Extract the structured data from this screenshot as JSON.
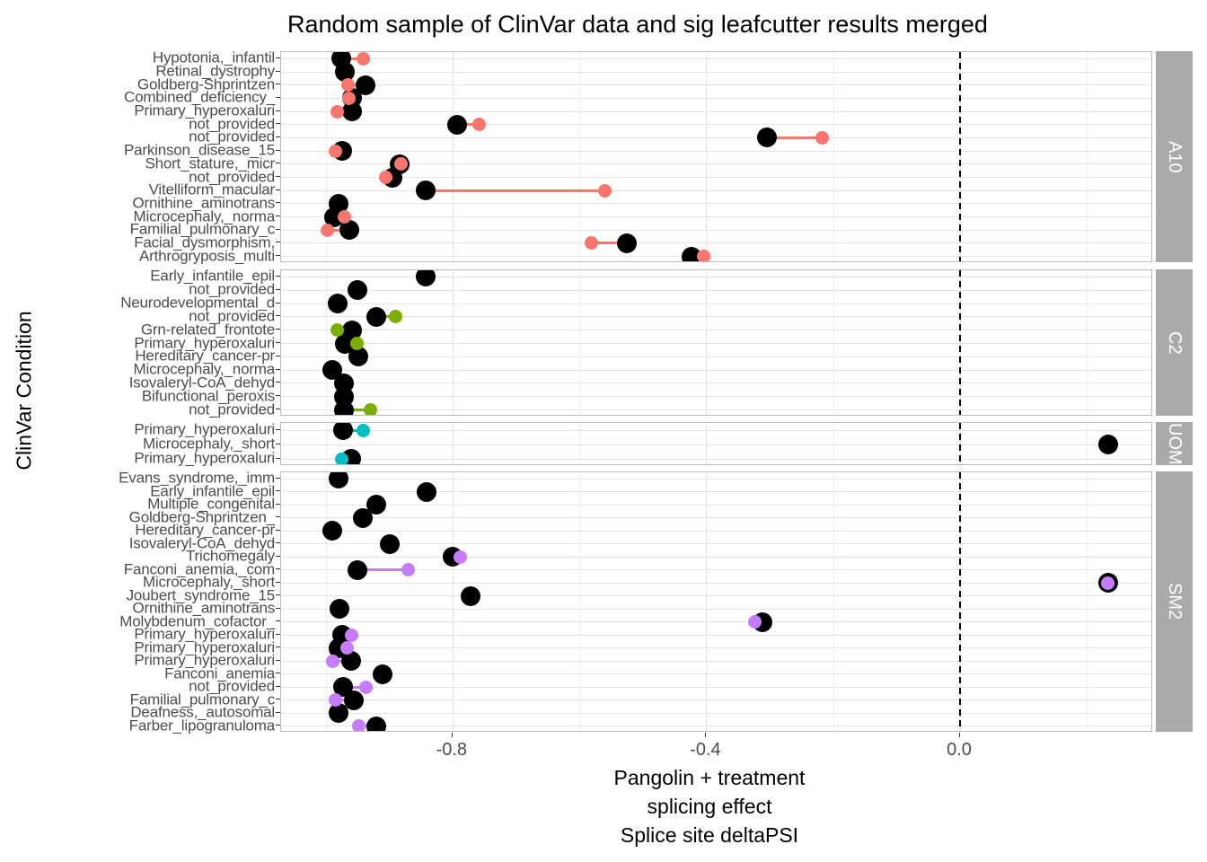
{
  "title": "Random sample of ClinVar data and sig leafcutter results merged",
  "y_axis": {
    "title": "ClinVar Condition"
  },
  "x_axis": {
    "title_lines": [
      "Pangolin + treatment",
      "splicing effect",
      "Splice site deltaPSI"
    ]
  },
  "colors": {
    "black_point": "#000000",
    "major_grid": "#e2e2e2",
    "minor_grid": "#efefef",
    "panel_border": "#bdbdbd",
    "strip_background": "#aaaaaa",
    "strip_text": "#ffffff",
    "axis_text": "#4d4d4d",
    "reference_line": "#000000"
  },
  "chart_data": {
    "type": "scatter",
    "title": "Random sample of ClinVar data and sig leafcutter results merged",
    "xlabel": "Pangolin + treatment splicing effect Splice site deltaPSI",
    "ylabel": "ClinVar Condition",
    "x_domain": [
      -1.07,
      0.305
    ],
    "x_major_ticks": [
      {
        "label": "-0.8",
        "value": -0.8
      },
      {
        "label": "-0.4",
        "value": -0.4
      },
      {
        "label": "0.0",
        "value": 0.0
      }
    ],
    "x_minor_ticks": [
      -1.0,
      -0.6,
      -0.2,
      0.2
    ],
    "reference_line_x": 0.0,
    "grid": true,
    "legend": "none",
    "series_meaning": [
      {
        "name": "large-black-point",
        "color": "#000000"
      },
      {
        "name": "small-colored-point",
        "color": "facet color"
      }
    ],
    "facets": [
      {
        "name": "A10",
        "color": "#F8766D",
        "rows": [
          {
            "label": "Hypotonia,_infantil",
            "black": -0.975,
            "colored": -0.94
          },
          {
            "label": "Retinal_dystrophy",
            "black": -0.97,
            "colored": null
          },
          {
            "label": "Goldberg-Shprintzen",
            "black": -0.937,
            "colored": -0.965
          },
          {
            "label": "Combined_deficiency_",
            "black": -0.958,
            "colored": -0.963
          },
          {
            "label": "Primary_hyperoxaluri",
            "black": -0.958,
            "colored": -0.981
          },
          {
            "label": "not_provided",
            "black": -0.792,
            "colored": -0.758
          },
          {
            "label": "not_provided",
            "black": -0.304,
            "colored": -0.217
          },
          {
            "label": "Parkinson_disease_15",
            "black": -0.974,
            "colored": -0.985
          },
          {
            "label": "Short_stature,_micr",
            "black": -0.883,
            "colored": -0.881
          },
          {
            "label": "not_provided",
            "black": -0.894,
            "colored": -0.905
          },
          {
            "label": "Vitelliform_macular",
            "black": -0.842,
            "colored": -0.56
          },
          {
            "label": "Ornithine_aminotrans",
            "black": -0.98,
            "colored": null
          },
          {
            "label": "Microcephaly,_norma",
            "black": -0.986,
            "colored": -0.97
          },
          {
            "label": "Familial_pulmonary_c",
            "black": -0.963,
            "colored": -0.997
          },
          {
            "label": "Facial_dysmorphism,",
            "black": -0.525,
            "colored": -0.581
          },
          {
            "label": "Arthrogryposis_multi",
            "black": -0.423,
            "colored": -0.404
          }
        ]
      },
      {
        "name": "C2",
        "color": "#7CAE00",
        "rows": [
          {
            "label": "Early_infantile_epil",
            "black": -0.842,
            "colored": null
          },
          {
            "label": "not_provided",
            "black": -0.95,
            "colored": null
          },
          {
            "label": "Neurodevelopmental_d",
            "black": -0.981,
            "colored": null
          },
          {
            "label": "not_provided",
            "black": -0.92,
            "colored": -0.89
          },
          {
            "label": "Grn-related_frontote",
            "black": -0.958,
            "colored": -0.981
          },
          {
            "label": "Primary_hyperoxaluri",
            "black": -0.969,
            "colored": -0.951
          },
          {
            "label": "Hereditary_cancer-pr",
            "black": -0.948,
            "colored": null
          },
          {
            "label": "Microcephaly,_norma",
            "black": -0.99,
            "colored": null
          },
          {
            "label": "Isovaleryl-CoA_dehyd",
            "black": -0.971,
            "colored": null
          },
          {
            "label": "Bifunctional_peroxis",
            "black": -0.971,
            "colored": null
          },
          {
            "label": "not_provided",
            "black": -0.971,
            "colored": -0.929
          }
        ]
      },
      {
        "name": "UOM",
        "color": "#00BFC4",
        "rows": [
          {
            "label": "Primary_hyperoxaluri",
            "black": -0.973,
            "colored": -0.941
          },
          {
            "label": "Microcephaly,_short",
            "black": 0.233,
            "colored": null
          },
          {
            "label": "Primary_hyperoxaluri",
            "black": -0.96,
            "colored": -0.975
          }
        ]
      },
      {
        "name": "SM2",
        "color": "#C77CFF",
        "rows": [
          {
            "label": "Evans_syndrome,_imm",
            "black": -0.98,
            "colored": null
          },
          {
            "label": "Early_infantile_epil",
            "black": -0.841,
            "colored": null
          },
          {
            "label": "Multiple_congenital",
            "black": -0.92,
            "colored": null
          },
          {
            "label": "Goldberg-Shprintzen_",
            "black": -0.941,
            "colored": null
          },
          {
            "label": "Hereditary_cancer-pr",
            "black": -0.99,
            "colored": null
          },
          {
            "label": "Isovaleryl-CoA_dehyd",
            "black": -0.899,
            "colored": null
          },
          {
            "label": "Trichomegaly",
            "black": -0.8,
            "colored": -0.787
          },
          {
            "label": "Fanconi_anemia,_com",
            "black": -0.95,
            "colored": -0.87
          },
          {
            "label": "Microcephaly,_short",
            "black": 0.233,
            "colored": 0.233
          },
          {
            "label": "Joubert_syndrome_15",
            "black": -0.772,
            "colored": null
          },
          {
            "label": "Ornithine_aminotrans",
            "black": -0.978,
            "colored": null
          },
          {
            "label": "Molybdenum_cofactor_",
            "black": -0.312,
            "colored": -0.323
          },
          {
            "label": "Primary_hyperoxaluri",
            "black": -0.974,
            "colored": -0.959
          },
          {
            "label": "Primary_hyperoxaluri",
            "black": -0.98,
            "colored": -0.966
          },
          {
            "label": "Primary_hyperoxaluri",
            "black": -0.96,
            "colored": -0.988
          },
          {
            "label": "Fanconi_anemia",
            "black": -0.91,
            "colored": null
          },
          {
            "label": "not_provided",
            "black": -0.973,
            "colored": -0.937
          },
          {
            "label": "Familial_pulmonary_c",
            "black": -0.956,
            "colored": -0.985
          },
          {
            "label": "Deafness,_autosomal",
            "black": -0.98,
            "colored": null
          },
          {
            "label": "Farber_lipogranuloma",
            "black": -0.92,
            "colored": -0.947
          }
        ]
      }
    ]
  }
}
